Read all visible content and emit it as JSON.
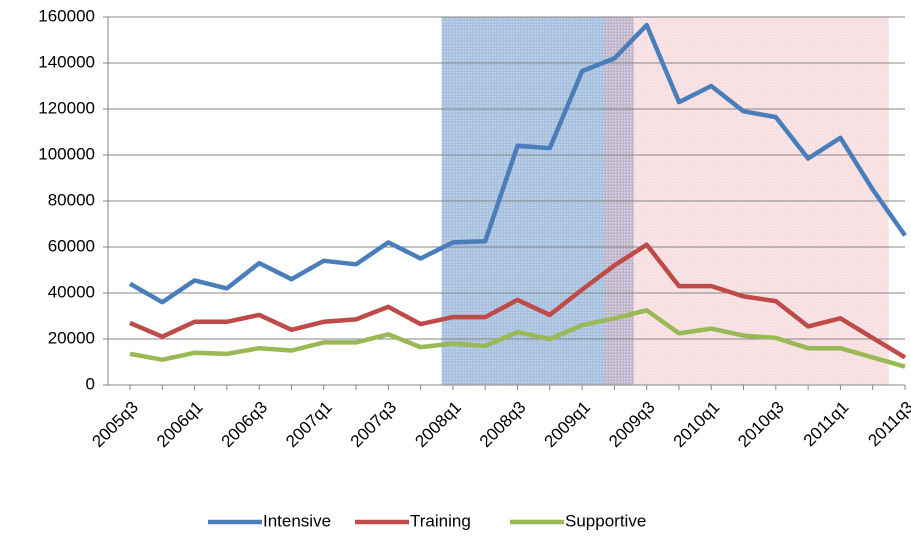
{
  "chart_data": {
    "type": "line",
    "categories": [
      "2005q3",
      null,
      "2006q1",
      null,
      "2006q3",
      null,
      "2007q1",
      null,
      "2007q3",
      null,
      "2008q1",
      null,
      "2008q3",
      null,
      "2009q1",
      null,
      "2009q3",
      null,
      "2010q1",
      null,
      "2010q3",
      null,
      "2011q1",
      null,
      "2011q3"
    ],
    "series": [
      {
        "name": "Intensive",
        "color": "#4a7ebb",
        "values": [
          44000,
          36000,
          45500,
          42000,
          53000,
          46000,
          54000,
          52500,
          62000,
          55000,
          62000,
          62500,
          104000,
          103000,
          136500,
          142000,
          156500,
          123000,
          130000,
          119000,
          116500,
          98500,
          107500,
          85000,
          65000
        ]
      },
      {
        "name": "Training",
        "color": "#be4b48",
        "values": [
          27000,
          21000,
          27500,
          27500,
          30500,
          24000,
          27500,
          28500,
          34000,
          26500,
          29500,
          29500,
          37000,
          30500,
          41500,
          52000,
          61000,
          43000,
          43000,
          38500,
          36500,
          25500,
          29000,
          20500,
          12000
        ]
      },
      {
        "name": "Supportive",
        "color": "#98b954",
        "values": [
          13500,
          11000,
          14000,
          13500,
          16000,
          15000,
          18500,
          18500,
          22000,
          16500,
          18000,
          17000,
          23000,
          20000,
          26000,
          29000,
          32500,
          22500,
          24500,
          21500,
          20500,
          16000,
          16000,
          12000,
          8000
        ]
      }
    ],
    "shaded_periods": [
      {
        "from": 9.65,
        "to": 15.6,
        "color": "#4f81bd"
      },
      {
        "from": 14.7,
        "to": 23.5,
        "color": "#e8a0aa"
      }
    ],
    "ylim": [
      0,
      160000
    ],
    "yticks": [
      0,
      20000,
      40000,
      60000,
      80000,
      100000,
      120000,
      140000,
      160000
    ],
    "grid": true,
    "legend": "bottom"
  }
}
